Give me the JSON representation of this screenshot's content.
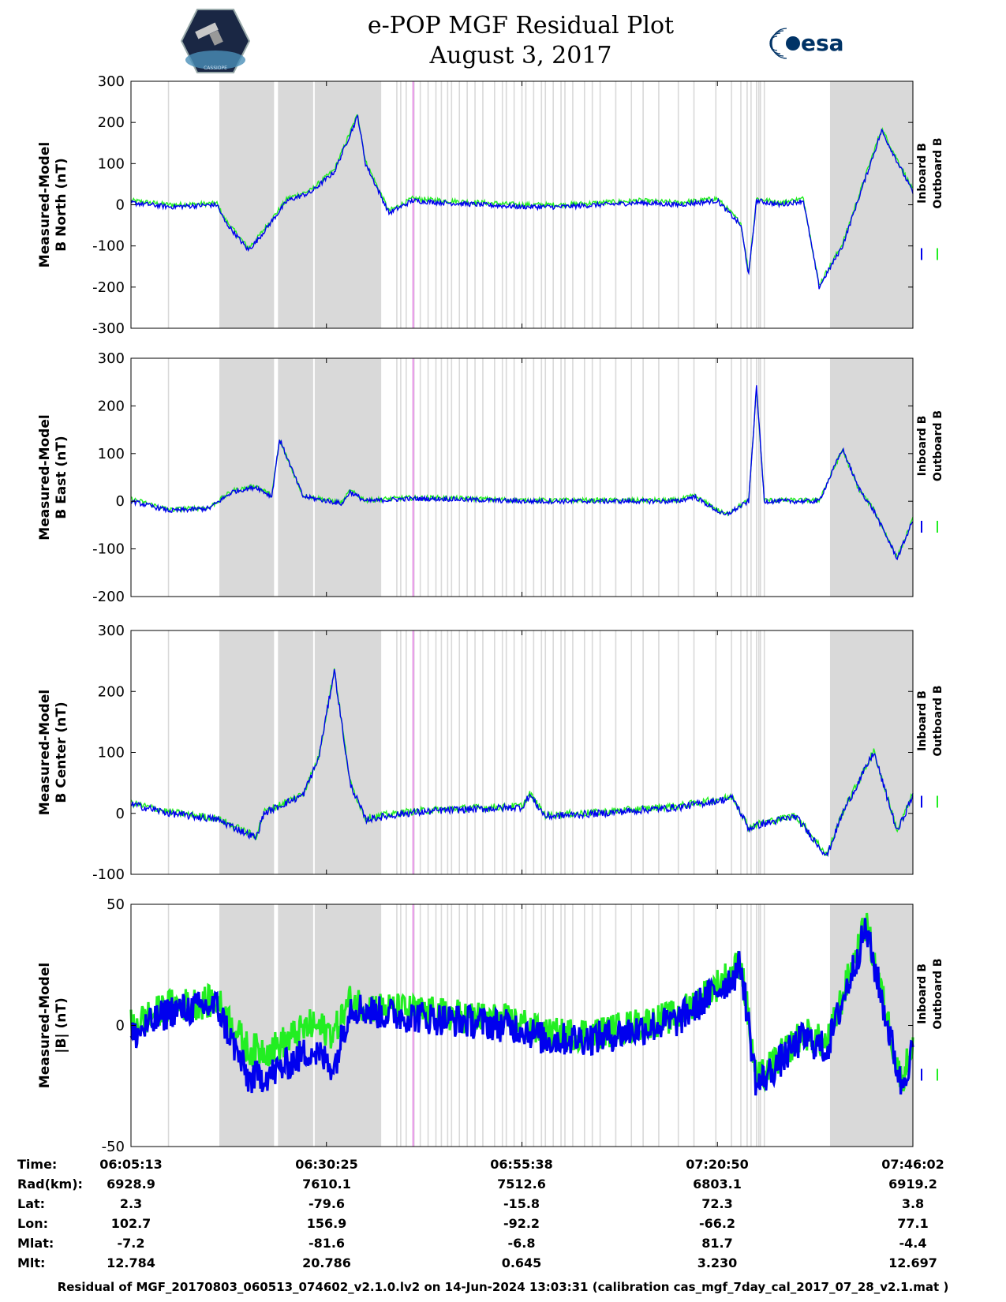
{
  "header": {
    "title_line1": "e-POP MGF Residual Plot",
    "title_line2": "August 3, 2017",
    "left_logo": "CASSIOPE",
    "right_logo": "esa"
  },
  "colors": {
    "inboard": "#0000ee",
    "outboard": "#22ee22",
    "shade": "#d9d9d9",
    "marker": "#e8a0e8"
  },
  "chart_data": [
    {
      "type": "line",
      "title": "",
      "ylabel": [
        "Measured-Model",
        "B North (nT)"
      ],
      "ylim": [
        -300,
        300
      ],
      "yticks": [
        "300",
        "200",
        "100",
        "0",
        "-100",
        "-200",
        "-300"
      ],
      "legend": [
        "Inboard B",
        "Outboard B"
      ],
      "series": [
        {
          "name": "Inboard B",
          "x": [
            0,
            0.05,
            0.11,
            0.12,
            0.15,
            0.16,
            0.2,
            0.23,
            0.26,
            0.29,
            0.3,
            0.33,
            0.35,
            0.36,
            0.4,
            0.45,
            0.5,
            0.55,
            0.6,
            0.65,
            0.7,
            0.75,
            0.78,
            0.79,
            0.8,
            0.83,
            0.86,
            0.88,
            0.91,
            0.96,
            1.0
          ],
          "y": [
            5,
            -5,
            0,
            -40,
            -110,
            -90,
            10,
            30,
            80,
            215,
            100,
            -20,
            0,
            10,
            5,
            0,
            -5,
            -5,
            0,
            5,
            0,
            10,
            -50,
            -170,
            10,
            0,
            10,
            -200,
            -100,
            180,
            30
          ]
        },
        {
          "name": "Outboard B",
          "x": [
            0,
            0.05,
            0.11,
            0.12,
            0.15,
            0.16,
            0.2,
            0.23,
            0.26,
            0.29,
            0.3,
            0.33,
            0.35,
            0.36,
            0.4,
            0.45,
            0.5,
            0.55,
            0.6,
            0.65,
            0.7,
            0.75,
            0.78,
            0.79,
            0.8,
            0.83,
            0.86,
            0.88,
            0.91,
            0.96,
            1.0
          ],
          "y": [
            10,
            0,
            3,
            -35,
            -105,
            -85,
            15,
            35,
            85,
            220,
            105,
            -15,
            5,
            15,
            10,
            5,
            0,
            0,
            5,
            10,
            5,
            15,
            -45,
            -165,
            15,
            5,
            15,
            -195,
            -95,
            185,
            35
          ]
        }
      ]
    },
    {
      "type": "line",
      "title": "",
      "ylabel": [
        "Measured-Model",
        "B East (nT)"
      ],
      "ylim": [
        -200,
        300
      ],
      "yticks": [
        "300",
        "200",
        "100",
        "0",
        "-100",
        "-200"
      ],
      "legend": [
        "Inboard B",
        "Outboard B"
      ],
      "series": [
        {
          "name": "Inboard B",
          "x": [
            0,
            0.05,
            0.1,
            0.13,
            0.16,
            0.18,
            0.19,
            0.22,
            0.27,
            0.28,
            0.3,
            0.35,
            0.4,
            0.5,
            0.6,
            0.7,
            0.72,
            0.76,
            0.79,
            0.8,
            0.81,
            0.84,
            0.88,
            0.91,
            0.93,
            0.95,
            0.98,
            1.0
          ],
          "y": [
            0,
            -20,
            -15,
            20,
            30,
            10,
            130,
            10,
            -5,
            20,
            0,
            5,
            5,
            0,
            0,
            0,
            10,
            -30,
            0,
            240,
            0,
            0,
            0,
            110,
            30,
            -20,
            -120,
            -40
          ]
        },
        {
          "name": "Outboard B",
          "x": [
            0,
            0.05,
            0.1,
            0.13,
            0.16,
            0.18,
            0.19,
            0.22,
            0.27,
            0.28,
            0.3,
            0.35,
            0.4,
            0.5,
            0.6,
            0.7,
            0.72,
            0.76,
            0.79,
            0.8,
            0.81,
            0.84,
            0.88,
            0.91,
            0.93,
            0.95,
            0.98,
            1.0
          ],
          "y": [
            5,
            -18,
            -13,
            22,
            32,
            12,
            128,
            12,
            -3,
            22,
            2,
            7,
            7,
            2,
            2,
            2,
            12,
            -28,
            2,
            238,
            2,
            2,
            2,
            108,
            28,
            -18,
            -118,
            -38
          ]
        }
      ]
    },
    {
      "type": "line",
      "title": "",
      "ylabel": [
        "Measured-Model",
        "B Center (nT)"
      ],
      "ylim": [
        -100,
        300
      ],
      "yticks": [
        "300",
        "200",
        "100",
        "0",
        "-100"
      ],
      "legend": [
        "Inboard B",
        "Outboard B"
      ],
      "series": [
        {
          "name": "Inboard B",
          "x": [
            0,
            0.05,
            0.11,
            0.16,
            0.17,
            0.22,
            0.24,
            0.26,
            0.28,
            0.3,
            0.35,
            0.4,
            0.5,
            0.51,
            0.53,
            0.6,
            0.7,
            0.77,
            0.79,
            0.8,
            0.85,
            0.89,
            0.91,
            0.95,
            0.98,
            1.0
          ],
          "y": [
            15,
            0,
            -10,
            -40,
            0,
            30,
            90,
            235,
            50,
            -10,
            0,
            5,
            10,
            30,
            -5,
            0,
            10,
            25,
            -25,
            -20,
            -5,
            -70,
            0,
            100,
            -30,
            30
          ]
        },
        {
          "name": "Outboard B",
          "x": [
            0,
            0.05,
            0.11,
            0.16,
            0.17,
            0.22,
            0.24,
            0.26,
            0.28,
            0.3,
            0.35,
            0.4,
            0.5,
            0.51,
            0.53,
            0.6,
            0.7,
            0.77,
            0.79,
            0.8,
            0.85,
            0.89,
            0.91,
            0.95,
            0.98,
            1.0
          ],
          "y": [
            17,
            2,
            -8,
            -38,
            2,
            32,
            92,
            237,
            52,
            -8,
            2,
            7,
            12,
            32,
            -3,
            2,
            12,
            27,
            -23,
            -18,
            -3,
            -68,
            2,
            102,
            -28,
            32
          ]
        }
      ]
    },
    {
      "type": "line",
      "title": "",
      "ylabel": [
        "Measured-Model",
        "|B| (nT)"
      ],
      "ylim": [
        -50,
        50
      ],
      "yticks": [
        "50",
        "0",
        "-50"
      ],
      "legend": [
        "Inboard B",
        "Outboard B"
      ],
      "series": [
        {
          "name": "Inboard B",
          "x": [
            0,
            0.05,
            0.11,
            0.15,
            0.18,
            0.23,
            0.26,
            0.28,
            0.32,
            0.45,
            0.5,
            0.53,
            0.6,
            0.7,
            0.77,
            0.78,
            0.8,
            0.86,
            0.89,
            0.94,
            0.985,
            1.0
          ],
          "y": [
            -5,
            6,
            8,
            -22,
            -20,
            -10,
            -17,
            8,
            5,
            1,
            -1,
            -6,
            -5,
            2,
            20,
            25,
            -25,
            -5,
            -10,
            40,
            -25,
            -10
          ]
        },
        {
          "name": "Outboard B",
          "x": [
            0,
            0.05,
            0.11,
            0.15,
            0.18,
            0.23,
            0.26,
            0.28,
            0.32,
            0.45,
            0.5,
            0.53,
            0.6,
            0.7,
            0.77,
            0.78,
            0.8,
            0.86,
            0.89,
            0.94,
            0.985,
            1.0
          ],
          "y": [
            0,
            8,
            10,
            -10,
            -10,
            0,
            -3,
            10,
            7,
            3,
            1,
            -4,
            -3,
            4,
            22,
            27,
            -23,
            -3,
            -8,
            42,
            -23,
            -8
          ]
        }
      ]
    }
  ],
  "shading": {
    "bands": [
      [
        0.113,
        0.183
      ],
      [
        0.188,
        0.233
      ],
      [
        0.235,
        0.32
      ],
      [
        0.894,
        1.0
      ]
    ],
    "lines": [
      0.048,
      0.34,
      0.345,
      0.352,
      0.362,
      0.37,
      0.38,
      0.39,
      0.397,
      0.405,
      0.41,
      0.42,
      0.43,
      0.44,
      0.45,
      0.465,
      0.475,
      0.48,
      0.49,
      0.5,
      0.505,
      0.515,
      0.525,
      0.53,
      0.54,
      0.55,
      0.555,
      0.565,
      0.58,
      0.59,
      0.6,
      0.62,
      0.64,
      0.655,
      0.675,
      0.7,
      0.72,
      0.748,
      0.768,
      0.78,
      0.788,
      0.793,
      0.8,
      0.803,
      0.805,
      0.81,
      0.8
    ],
    "marker": 0.361
  },
  "x_axis": {
    "tick_positions": [
      0,
      0.25,
      0.5,
      0.75,
      1.0
    ],
    "tick_fraction_note": "fraction of time range"
  },
  "info_table": {
    "rows": [
      {
        "label": "Time:",
        "values": [
          "06:05:13",
          "06:30:25",
          "06:55:38",
          "07:20:50",
          "07:46:02"
        ]
      },
      {
        "label": "Rad(km):",
        "values": [
          "6928.9",
          "7610.1",
          "7512.6",
          "6803.1",
          "6919.2"
        ]
      },
      {
        "label": "Lat:",
        "values": [
          "2.3",
          "-79.6",
          "-15.8",
          "72.3",
          "3.8"
        ]
      },
      {
        "label": "Lon:",
        "values": [
          "102.7",
          "156.9",
          "-92.2",
          "-66.2",
          "77.1"
        ]
      },
      {
        "label": "Mlat:",
        "values": [
          "-7.2",
          "-81.6",
          "-6.8",
          "81.7",
          "-4.4"
        ]
      },
      {
        "label": "Mlt:",
        "values": [
          "12.784",
          "20.786",
          "0.645",
          "3.230",
          "12.697"
        ]
      }
    ]
  },
  "footer": "Residual of MGF_20170803_060513_074602_v2.1.0.lv2 on 14-Jun-2024 13:03:31 (calibration cas_mgf_7day_cal_2017_07_28_v2.1.mat )"
}
